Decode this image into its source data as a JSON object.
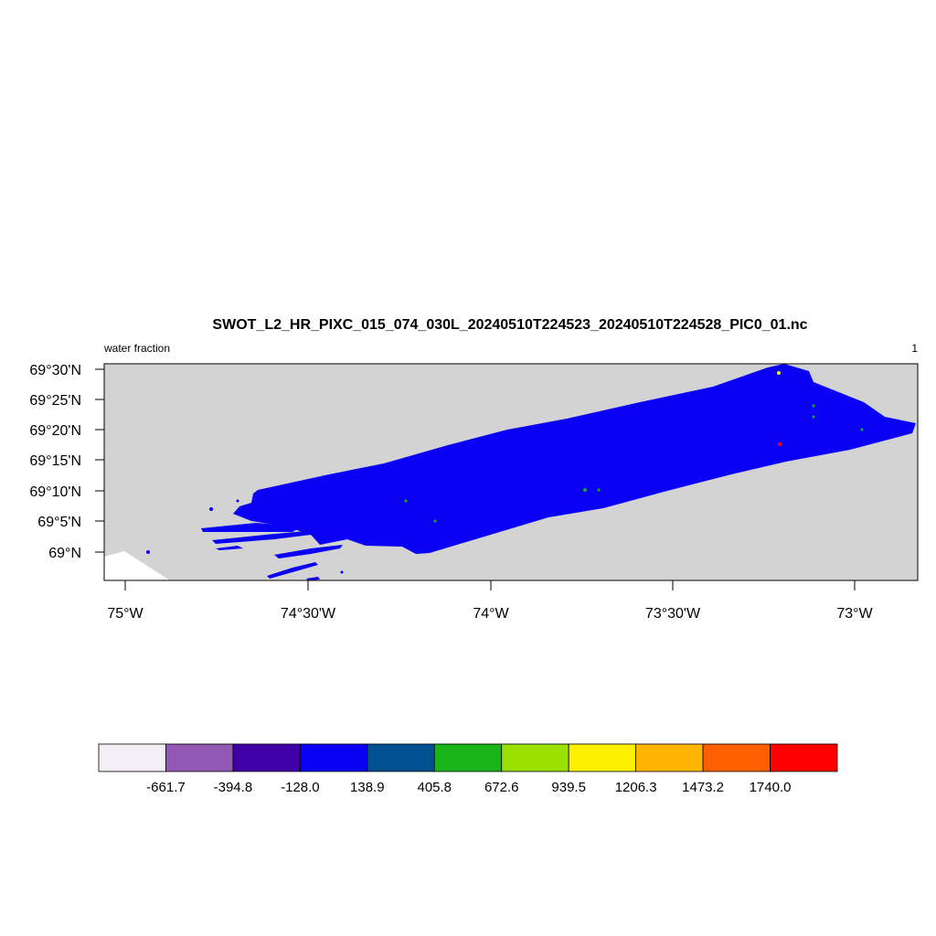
{
  "chart_data": {
    "type": "heatmap",
    "title": "SWOT_L2_HR_PIXC_015_074_030L_20240510T224523_20240510T224528_PIC0_01.nc",
    "left_label": "water fraction",
    "right_label": "1",
    "x_ticks": [
      "75°W",
      "74°30'W",
      "74°W",
      "73°30'W",
      "73°W"
    ],
    "y_ticks": [
      "69°30'N",
      "69°25'N",
      "69°20'N",
      "69°15'N",
      "69°10'N",
      "69°5'N",
      "69°N"
    ],
    "x_range_lon": [
      -75.06,
      -72.82
    ],
    "y_range_lat": [
      68.95,
      69.52
    ],
    "colorbar": {
      "colors": [
        "#f3eef6",
        "#9159b4",
        "#3f00a8",
        "#0a00f5",
        "#005090",
        "#18b418",
        "#9ae000",
        "#fff000",
        "#ffb400",
        "#ff5f00",
        "#ff0000"
      ],
      "labels": [
        "-661.7",
        "-394.8",
        "-128.0",
        "138.9",
        "405.8",
        "672.6",
        "939.5",
        "1206.3",
        "1473.2",
        "1740.0"
      ]
    },
    "land_color": "#d3d3d3",
    "dominant_value_color": "#0a00f5"
  }
}
